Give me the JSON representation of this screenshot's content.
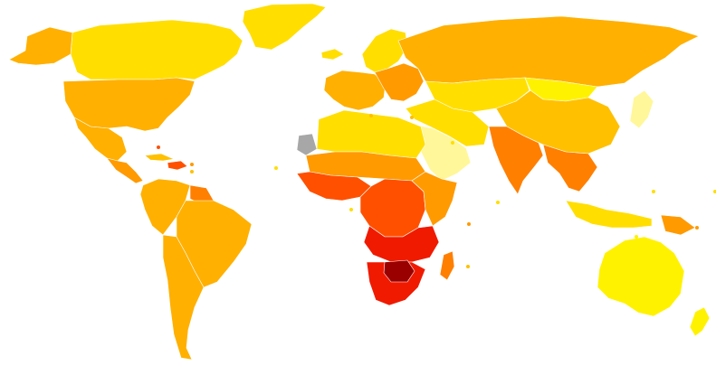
{
  "map": {
    "type": "choropleth-world-map",
    "background": "#ffffff",
    "border_color": "#ffffff",
    "no_data_color": "#a7a7a7",
    "palette": {
      "light_yellow": "#fff799",
      "yellow": "#fff200",
      "gold": "#ffde00",
      "amber": "#ffc000",
      "orange_light": "#ffb000",
      "orange": "#ff9a00",
      "orange_dark": "#ff7f00",
      "red_orange": "#ff5000",
      "red": "#f01a00",
      "dark_red": "#9a0000"
    },
    "regions": [
      {
        "name": "greenland",
        "color": "#ffde00"
      },
      {
        "name": "canada",
        "color": "#ffde00"
      },
      {
        "name": "alaska",
        "color": "#ffb000"
      },
      {
        "name": "usa",
        "color": "#ffb000"
      },
      {
        "name": "mexico",
        "color": "#ffb000"
      },
      {
        "name": "central-america",
        "color": "#ff9a00"
      },
      {
        "name": "cuba",
        "color": "#ffc000"
      },
      {
        "name": "hispaniola",
        "color": "#ff5000"
      },
      {
        "name": "south-america-north",
        "color": "#ffb000"
      },
      {
        "name": "guyanas",
        "color": "#ff7f00"
      },
      {
        "name": "brazil",
        "color": "#ffb000"
      },
      {
        "name": "south-america-south",
        "color": "#ffb000"
      },
      {
        "name": "iceland",
        "color": "#ffde00"
      },
      {
        "name": "scandinavia",
        "color": "#ffde00"
      },
      {
        "name": "western-europe",
        "color": "#ffb000"
      },
      {
        "name": "eastern-europe",
        "color": "#ff9a00"
      },
      {
        "name": "russia",
        "color": "#ffb000"
      },
      {
        "name": "central-asia",
        "color": "#ffde00"
      },
      {
        "name": "mongolia",
        "color": "#fff200"
      },
      {
        "name": "china",
        "color": "#ffc000"
      },
      {
        "name": "japan",
        "color": "#fff799"
      },
      {
        "name": "middle-east",
        "color": "#ffde00"
      },
      {
        "name": "arabia",
        "color": "#fff799"
      },
      {
        "name": "india",
        "color": "#ff7f00"
      },
      {
        "name": "southeast-asia",
        "color": "#ff7f00"
      },
      {
        "name": "indonesia",
        "color": "#ffde00"
      },
      {
        "name": "papua",
        "color": "#ff9a00"
      },
      {
        "name": "australia",
        "color": "#fff200"
      },
      {
        "name": "new-zealand",
        "color": "#fff200"
      },
      {
        "name": "north-africa",
        "color": "#ffde00"
      },
      {
        "name": "western-sahara",
        "color": "#a7a7a7"
      },
      {
        "name": "sahel",
        "color": "#ff9a00"
      },
      {
        "name": "west-africa",
        "color": "#ff5000"
      },
      {
        "name": "central-africa",
        "color": "#ff5000"
      },
      {
        "name": "east-africa",
        "color": "#ff9a00"
      },
      {
        "name": "southern-central-africa",
        "color": "#f01a00"
      },
      {
        "name": "south-africa",
        "color": "#f01a00"
      },
      {
        "name": "botswana-zimbabwe",
        "color": "#9a0000"
      },
      {
        "name": "madagascar",
        "color": "#ff7f00"
      }
    ]
  }
}
